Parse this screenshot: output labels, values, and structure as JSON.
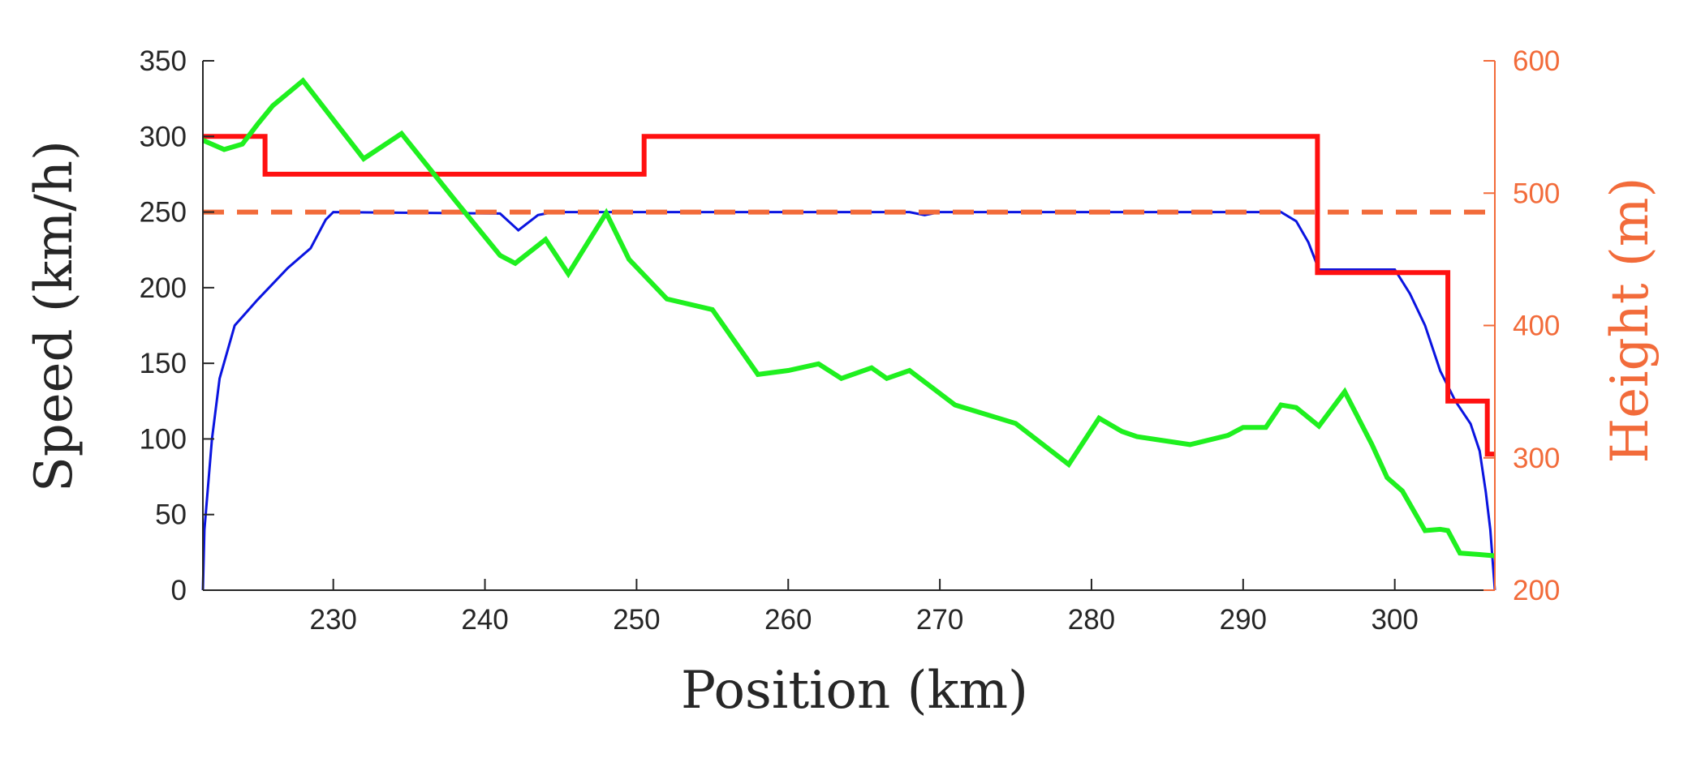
{
  "chart_data": {
    "type": "line",
    "xlabel": "Position (km)",
    "ylabel": "Speed (km/h)",
    "y2label": "Height (m)",
    "xlim": [
      221.4,
      306.6
    ],
    "ylim": [
      0,
      350
    ],
    "y2lim": [
      200,
      600
    ],
    "xticks": [
      230,
      240,
      250,
      260,
      270,
      280,
      290,
      300
    ],
    "yticks": [
      0,
      50,
      100,
      150,
      200,
      250,
      300,
      350
    ],
    "y2ticks": [
      200,
      300,
      400,
      500,
      600
    ],
    "grid": false,
    "colors": {
      "axis": "#262626",
      "right_axis": "#f26b3a",
      "speed": "#0a14e0",
      "limit": "#ff1010",
      "height": "#1ff01f",
      "dashed": "#f26b3a"
    },
    "series": [
      {
        "axis": "left",
        "style": "solid",
        "color": "#0a14e0",
        "width": 3,
        "points": [
          [
            221.4,
            0
          ],
          [
            221.5,
            40
          ],
          [
            222,
            100
          ],
          [
            222.5,
            140
          ],
          [
            223.5,
            175
          ],
          [
            225,
            192
          ],
          [
            227,
            213
          ],
          [
            228.5,
            226
          ],
          [
            229.5,
            245
          ],
          [
            230,
            250
          ],
          [
            241,
            249
          ],
          [
            242.2,
            238
          ],
          [
            243.5,
            248
          ],
          [
            244.5,
            250
          ],
          [
            268,
            250
          ],
          [
            269,
            248
          ],
          [
            270,
            250
          ],
          [
            292.5,
            250
          ],
          [
            293.5,
            244
          ],
          [
            294.3,
            230
          ],
          [
            295,
            212
          ],
          [
            300,
            212
          ],
          [
            301,
            196
          ],
          [
            302,
            175
          ],
          [
            303,
            145
          ],
          [
            304,
            125
          ],
          [
            305,
            110
          ],
          [
            305.6,
            92
          ],
          [
            306,
            65
          ],
          [
            306.3,
            40
          ],
          [
            306.6,
            0
          ]
        ]
      },
      {
        "axis": "left",
        "style": "solid",
        "color": "#ff1010",
        "width": 6,
        "points": [
          [
            221.4,
            300
          ],
          [
            225.5,
            300
          ],
          [
            225.5,
            275
          ],
          [
            250.5,
            275
          ],
          [
            250.5,
            300
          ],
          [
            294.9,
            300
          ],
          [
            294.9,
            210
          ],
          [
            303.5,
            210
          ],
          [
            303.5,
            125
          ],
          [
            306.1,
            125
          ],
          [
            306.1,
            90
          ],
          [
            306.6,
            90
          ]
        ]
      },
      {
        "axis": "left",
        "style": "dashed",
        "color": "#f26b3a",
        "width": 6,
        "points": [
          [
            221.4,
            250
          ],
          [
            306.6,
            250
          ]
        ]
      },
      {
        "axis": "right",
        "style": "solid",
        "color": "#1ff01f",
        "width": 6,
        "points": [
          [
            221.4,
            540
          ],
          [
            222.8,
            533
          ],
          [
            224,
            537
          ],
          [
            225,
            552
          ],
          [
            226,
            566
          ],
          [
            228,
            585
          ],
          [
            232,
            526
          ],
          [
            234.5,
            545
          ],
          [
            238,
            495
          ],
          [
            241,
            453
          ],
          [
            242,
            447
          ],
          [
            244,
            465
          ],
          [
            245.5,
            439
          ],
          [
            248,
            485
          ],
          [
            249.5,
            450
          ],
          [
            252,
            420
          ],
          [
            255,
            412
          ],
          [
            258,
            363
          ],
          [
            260,
            366
          ],
          [
            262,
            371
          ],
          [
            263.5,
            360
          ],
          [
            265.5,
            368
          ],
          [
            266.5,
            360
          ],
          [
            268,
            366
          ],
          [
            271,
            340
          ],
          [
            275,
            326
          ],
          [
            278.5,
            295
          ],
          [
            280.5,
            330
          ],
          [
            282,
            320
          ],
          [
            283,
            316
          ],
          [
            286.5,
            310
          ],
          [
            289,
            317
          ],
          [
            290,
            323
          ],
          [
            291.5,
            323
          ],
          [
            292.5,
            340
          ],
          [
            293.5,
            338
          ],
          [
            295,
            324
          ],
          [
            296.7,
            350
          ],
          [
            298.5,
            310
          ],
          [
            299.5,
            285
          ],
          [
            300.5,
            275
          ],
          [
            302,
            245
          ],
          [
            303,
            246
          ],
          [
            303.5,
            245
          ],
          [
            304.3,
            228
          ],
          [
            305.5,
            227
          ],
          [
            306.6,
            226
          ]
        ]
      }
    ]
  }
}
